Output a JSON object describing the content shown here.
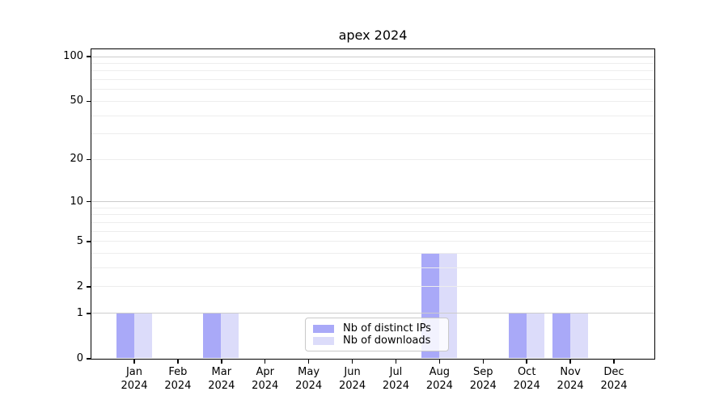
{
  "title": "apex 2024",
  "colors": {
    "distinct_ips_bar": "#a9a9f8",
    "downloads_bar": "#dcdcfa",
    "grid_major": "#cccccc",
    "grid_minor": "#ededed",
    "axis": "#000000",
    "legend_border": "#c9c9c9"
  },
  "legend": {
    "items": [
      {
        "label": "Nb of distinct IPs",
        "series": "distinct_ips"
      },
      {
        "label": "Nb of downloads",
        "series": "downloads"
      }
    ]
  },
  "chart_data": {
    "type": "bar",
    "title": "apex 2024",
    "categories": [
      "Jan 2024",
      "Feb 2024",
      "Mar 2024",
      "Apr 2024",
      "May 2024",
      "Jun 2024",
      "Jul 2024",
      "Aug 2024",
      "Sep 2024",
      "Oct 2024",
      "Nov 2024",
      "Dec 2024"
    ],
    "x_tick_lines": [
      [
        "Jan",
        "2024"
      ],
      [
        "Feb",
        "2024"
      ],
      [
        "Mar",
        "2024"
      ],
      [
        "Apr",
        "2024"
      ],
      [
        "May",
        "2024"
      ],
      [
        "Jun",
        "2024"
      ],
      [
        "Jul",
        "2024"
      ],
      [
        "Aug",
        "2024"
      ],
      [
        "Sep",
        "2024"
      ],
      [
        "Oct",
        "2024"
      ],
      [
        "Nov",
        "2024"
      ],
      [
        "Dec",
        "2024"
      ]
    ],
    "series": [
      {
        "name": "Nb of distinct IPs",
        "color_key": "distinct_ips_bar",
        "values": [
          1,
          0,
          1,
          0,
          0,
          0,
          0,
          4,
          0,
          1,
          1,
          0
        ]
      },
      {
        "name": "Nb of downloads",
        "color_key": "downloads_bar",
        "values": [
          1,
          0,
          1,
          0,
          0,
          0,
          0,
          4,
          0,
          1,
          1,
          0
        ]
      }
    ],
    "xlabel": "",
    "ylabel": "",
    "y_axis": {
      "scale": "log1p",
      "min": 0,
      "max": 100,
      "tick_values": [
        100,
        50,
        20,
        10,
        5,
        2,
        1,
        0
      ],
      "tick_labels": [
        "100",
        "50",
        "20",
        "10",
        "5",
        "2",
        "1",
        "0"
      ]
    },
    "grid": {
      "on": true,
      "major_values": [
        1,
        10,
        100
      ],
      "minor_values": [
        2,
        3,
        4,
        5,
        6,
        7,
        8,
        9,
        20,
        30,
        40,
        50,
        60,
        70,
        80,
        90
      ]
    },
    "legend_position": "bottom-center"
  }
}
